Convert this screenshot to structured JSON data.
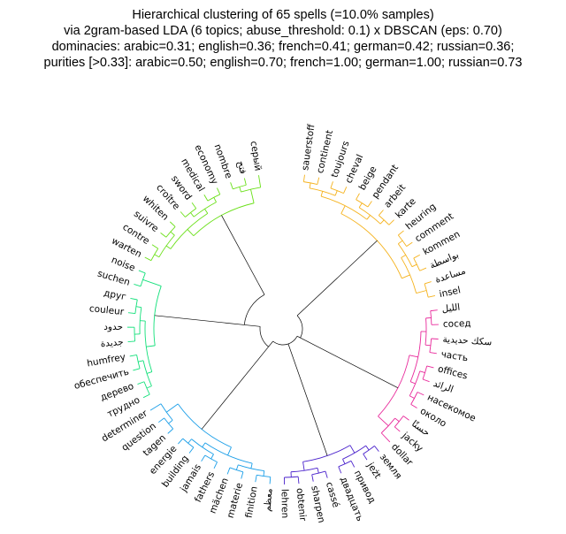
{
  "title_lines": [
    "Hierarchical clustering of 65 spells (=10.0% samples)",
    "via 2gram-based LDA (6 topics; abuse_threshold: 0.1) x DBSCAN (eps: 0.70)",
    "dominacies: arabic=0.31; english=0.36; french=0.41; german=0.42; russian=0.36;",
    "purities [>0.33]: arabic=0.50; english=0.70; french=1.00; german=1.00; russian=0.73"
  ],
  "chart_data": {
    "type": "dendrogram",
    "layout": "circular",
    "leaves": [
      "sauerstoff",
      "continent",
      "toujours",
      "cheval",
      "beige",
      "pendant",
      "arbeit",
      "karte",
      "heuring",
      "comment",
      "kommen",
      "بواسطة",
      "مساعدة",
      "insel",
      "الليل",
      "сосед",
      "سكك حديدية",
      "часть",
      "offices",
      "الرائد",
      "насекомое",
      "около",
      "حسنًا",
      "jacky",
      "dollar",
      "земля",
      "jeżt",
      "привод",
      "двадцать",
      "cassé",
      "sharpen",
      "obtenir",
      "lehren",
      "معظم",
      "finition",
      "materie",
      "mächen",
      "fathers",
      "jamais",
      "building",
      "energie",
      "tagen",
      "question",
      "determiner",
      "трудно",
      "дерево",
      "обеспечить",
      "humfrey",
      "جديدة",
      "حدود",
      "couleur",
      "друг",
      "suchen",
      "noise",
      "warten",
      "contre",
      "suivre",
      "whiten",
      "croître",
      "sword",
      "medical",
      "economy",
      "nombre",
      "فتح",
      "серый"
    ],
    "clusters": [
      {
        "color": "#f5b21c",
        "leaves": [
          "sauerstoff",
          "continent",
          "toujours",
          "cheval",
          "beige",
          "pendant",
          "arbeit",
          "karte",
          "heuring",
          "comment",
          "kommen",
          "بواسطة",
          "مساعدة",
          "insel"
        ]
      },
      {
        "color": "#e8289a",
        "leaves": [
          "الليل",
          "сосед",
          "سكك حديدية",
          "часть",
          "offices",
          "الرائد",
          "насекомое",
          "около",
          "حسنًا",
          "jacky",
          "dollar"
        ]
      },
      {
        "color": "#4a22cc",
        "leaves": [
          "земля",
          "jeżt",
          "привод",
          "двадцать",
          "cassé",
          "sharpen",
          "obtenir",
          "lehren"
        ]
      },
      {
        "color": "#1a9ee8",
        "leaves": [
          "معظم",
          "finition",
          "materie",
          "mächen",
          "fathers",
          "jamais",
          "building",
          "energie",
          "tagen",
          "question",
          "determiner"
        ]
      },
      {
        "color": "#12e07a",
        "leaves": [
          "трудно",
          "дерево",
          "обеспечить",
          "humfrey",
          "جديدة",
          "حدود",
          "couleur",
          "друг",
          "suchen",
          "noise"
        ]
      },
      {
        "color": "#6ae018",
        "leaves": [
          "warten",
          "contre",
          "suivre",
          "whiten",
          "croître",
          "sword",
          "medical",
          "economy",
          "nombre",
          "فتح",
          "серый"
        ]
      }
    ],
    "link_color_above_threshold": "#000000"
  }
}
